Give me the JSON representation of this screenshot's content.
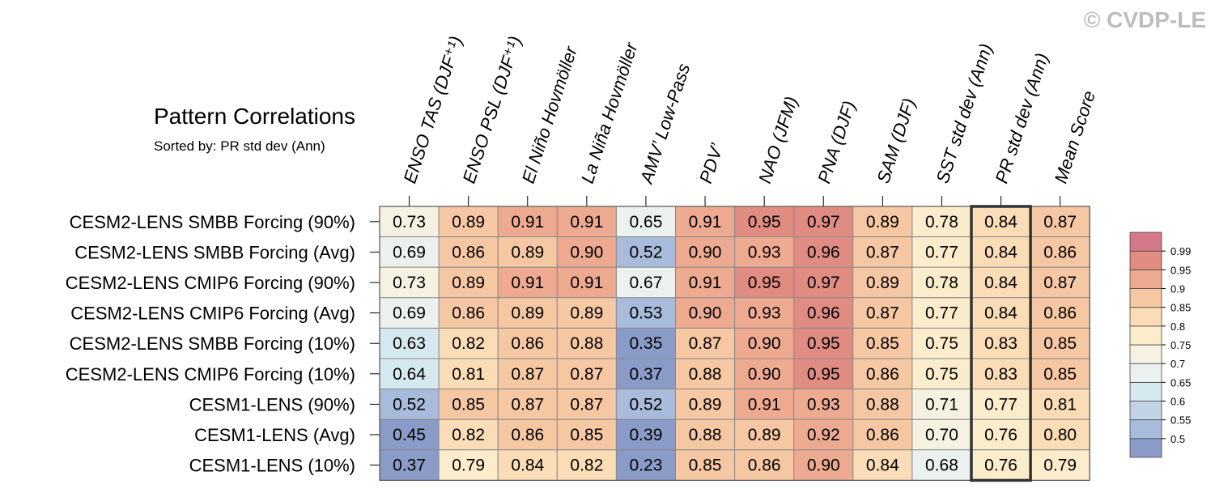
{
  "watermark": "© CVDP-LE",
  "chart_data": {
    "type": "heatmap",
    "title": "Pattern Correlations",
    "subtitle": "Sorted by: PR std dev (Ann)",
    "columns": [
      "ENSO TAS (DJF⁺¹)",
      "ENSO PSL (DJF⁺¹)",
      "El Niño Hovmöller",
      "La Niña Hovmöller",
      "AMV’ Low-Pass",
      "PDV’",
      "NAO (JFM)",
      "PNA (DJF)",
      "SAM (DJF)",
      "SST std dev (Ann)",
      "PR std dev (Ann)",
      "Mean Score"
    ],
    "rows": [
      "CESM2-LENS SMBB Forcing (90%)",
      "CESM2-LENS SMBB Forcing (Avg)",
      "CESM2-LENS CMIP6 Forcing (90%)",
      "CESM2-LENS CMIP6 Forcing (Avg)",
      "CESM2-LENS SMBB Forcing (10%)",
      "CESM2-LENS CMIP6 Forcing (10%)",
      "CESM1-LENS (90%)",
      "CESM1-LENS (Avg)",
      "CESM1-LENS (10%)"
    ],
    "values": [
      [
        "0.73",
        "0.89",
        "0.91",
        "0.91",
        "0.65",
        "0.91",
        "0.95",
        "0.97",
        "0.89",
        "0.78",
        "0.84",
        "0.87"
      ],
      [
        "0.69",
        "0.86",
        "0.89",
        "0.90",
        "0.52",
        "0.90",
        "0.93",
        "0.96",
        "0.87",
        "0.77",
        "0.84",
        "0.86"
      ],
      [
        "0.73",
        "0.89",
        "0.91",
        "0.91",
        "0.67",
        "0.91",
        "0.95",
        "0.97",
        "0.89",
        "0.78",
        "0.84",
        "0.87"
      ],
      [
        "0.69",
        "0.86",
        "0.89",
        "0.89",
        "0.53",
        "0.90",
        "0.93",
        "0.96",
        "0.87",
        "0.77",
        "0.84",
        "0.86"
      ],
      [
        "0.63",
        "0.82",
        "0.86",
        "0.88",
        "0.35",
        "0.87",
        "0.90",
        "0.95",
        "0.85",
        "0.75",
        "0.83",
        "0.85"
      ],
      [
        "0.64",
        "0.81",
        "0.87",
        "0.87",
        "0.37",
        "0.88",
        "0.90",
        "0.95",
        "0.86",
        "0.75",
        "0.83",
        "0.85"
      ],
      [
        "0.52",
        "0.85",
        "0.87",
        "0.87",
        "0.52",
        "0.89",
        "0.91",
        "0.93",
        "0.88",
        "0.71",
        "0.77",
        "0.81"
      ],
      [
        "0.45",
        "0.82",
        "0.86",
        "0.85",
        "0.39",
        "0.88",
        "0.89",
        "0.92",
        "0.86",
        "0.70",
        "0.76",
        "0.80"
      ],
      [
        "0.37",
        "0.79",
        "0.84",
        "0.82",
        "0.23",
        "0.85",
        "0.86",
        "0.90",
        "0.84",
        "0.68",
        "0.76",
        "0.79"
      ]
    ],
    "highlighted_column": "PR std dev (Ann)",
    "colorbar": {
      "ticks": [
        "0.99",
        "0.95",
        "0.9",
        "0.85",
        "0.8",
        "0.75",
        "0.7",
        "0.65",
        "0.6",
        "0.55",
        "0.5"
      ],
      "bins": [
        0.5,
        0.55,
        0.6,
        0.65,
        0.7,
        0.75,
        0.8,
        0.85,
        0.9,
        0.95,
        0.99
      ],
      "colors": [
        "#8b9bc8",
        "#a8bbda",
        "#c0d4e6",
        "#d6e8ef",
        "#eaf1ef",
        "#f6f2e2",
        "#fbeccb",
        "#fadcb6",
        "#f6c7a3",
        "#eeaa91",
        "#e08c82",
        "#d4798a"
      ]
    }
  }
}
